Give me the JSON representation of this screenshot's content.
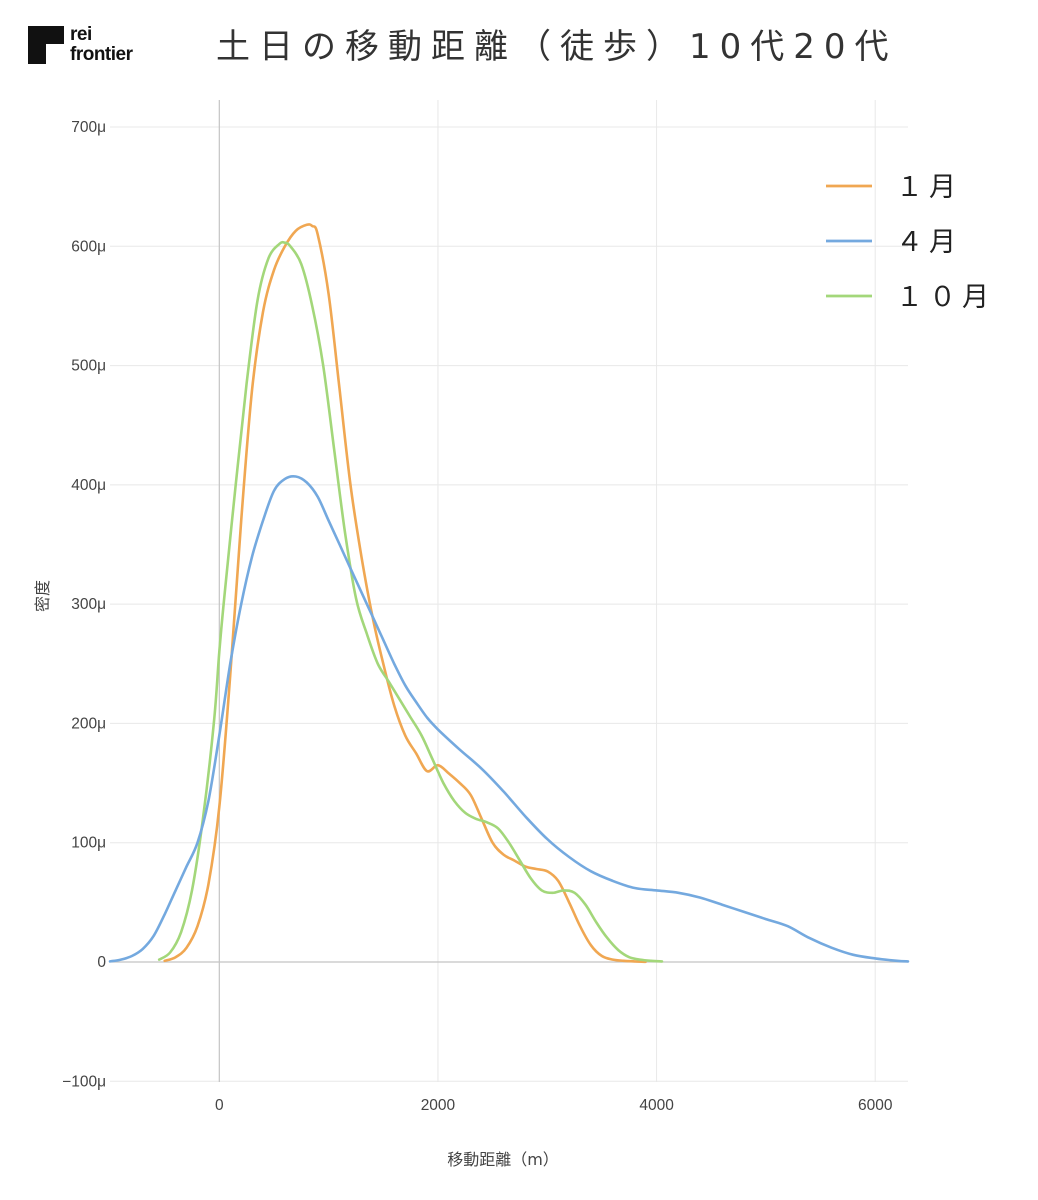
{
  "header": {
    "logo_line1": "rei",
    "logo_line2": "frontier",
    "title": "土日の移動距離（徒歩）10代20代"
  },
  "chart_data": {
    "type": "line",
    "title": "土日の移動距離（徒歩）10代20代",
    "xlabel": "移動距離（m）",
    "ylabel": "密度",
    "xlim": [
      -1000,
      6300
    ],
    "ylim": [
      -0.0001,
      0.0007
    ],
    "x_ticks": [
      0,
      2000,
      4000,
      6000
    ],
    "x_tick_labels": [
      "0",
      "2000",
      "4000",
      "6000"
    ],
    "y_ticks": [
      -0.0001,
      0,
      0.0001,
      0.0002,
      0.0003,
      0.0004,
      0.0005,
      0.0006,
      0.0007
    ],
    "y_tick_labels": [
      "−100μ",
      "0",
      "100μ",
      "200μ",
      "300μ",
      "400μ",
      "500μ",
      "600μ",
      "700μ"
    ],
    "grid": true,
    "legend_position": "top-right",
    "series": [
      {
        "name": "１月",
        "color": "#f0a752",
        "x": [
          -500,
          -400,
          -300,
          -200,
          -100,
          0,
          100,
          200,
          300,
          400,
          500,
          600,
          700,
          800,
          850,
          900,
          1000,
          1100,
          1200,
          1300,
          1400,
          1500,
          1600,
          1700,
          1800,
          1900,
          2000,
          2100,
          2200,
          2300,
          2400,
          2500,
          2600,
          2700,
          2800,
          2900,
          3000,
          3100,
          3200,
          3300,
          3400,
          3500,
          3600,
          3700,
          3800,
          3900
        ],
        "y": [
          1e-06,
          4e-06,
          1.2e-05,
          3e-05,
          6.5e-05,
          0.00013,
          0.00024,
          0.00037,
          0.00048,
          0.000545,
          0.00058,
          0.0006,
          0.000613,
          0.000618,
          0.000617,
          0.00061,
          0.00056,
          0.00048,
          0.0004,
          0.00034,
          0.00029,
          0.00025,
          0.000215,
          0.00019,
          0.000175,
          0.00016,
          0.000165,
          0.000158,
          0.00015,
          0.00014,
          0.00012,
          0.0001,
          9e-05,
          8.5e-05,
          8e-05,
          7.8e-05,
          7.6e-05,
          6.8e-05,
          5e-05,
          3e-05,
          1.4e-05,
          5e-06,
          2e-06,
          1e-06,
          5e-07,
          2e-07
        ]
      },
      {
        "name": "４月",
        "color": "#74a9df",
        "x": [
          -1000,
          -900,
          -800,
          -700,
          -600,
          -500,
          -400,
          -300,
          -200,
          -100,
          0,
          100,
          200,
          300,
          400,
          500,
          600,
          700,
          800,
          900,
          1000,
          1100,
          1200,
          1300,
          1400,
          1500,
          1600,
          1700,
          1800,
          1900,
          2000,
          2200,
          2400,
          2600,
          2800,
          3000,
          3200,
          3400,
          3600,
          3800,
          4000,
          4200,
          4400,
          4600,
          4800,
          5000,
          5200,
          5400,
          5600,
          5800,
          6000,
          6200,
          6300
        ],
        "y": [
          5e-07,
          2e-06,
          5e-06,
          1.1e-05,
          2.2e-05,
          4e-05,
          6e-05,
          8e-05,
          0.0001,
          0.000135,
          0.00019,
          0.00025,
          0.0003,
          0.00034,
          0.00037,
          0.000395,
          0.000405,
          0.000407,
          0.000402,
          0.00039,
          0.00037,
          0.00035,
          0.00033,
          0.00031,
          0.00029,
          0.00027,
          0.00025,
          0.000232,
          0.000218,
          0.000205,
          0.000195,
          0.000178,
          0.000162,
          0.000143,
          0.000122,
          0.000103,
          8.8e-05,
          7.6e-05,
          6.8e-05,
          6.2e-05,
          6e-05,
          5.8e-05,
          5.4e-05,
          4.8e-05,
          4.2e-05,
          3.6e-05,
          3e-05,
          2e-05,
          1.2e-05,
          6e-06,
          3e-06,
          1e-06,
          5e-07
        ]
      },
      {
        "name": "１０月",
        "color": "#a3d77a",
        "x": [
          -550,
          -450,
          -350,
          -250,
          -150,
          -50,
          0,
          50,
          150,
          250,
          350,
          450,
          550,
          600,
          650,
          750,
          850,
          950,
          1050,
          1150,
          1250,
          1350,
          1450,
          1550,
          1650,
          1750,
          1850,
          1950,
          2050,
          2150,
          2250,
          2350,
          2450,
          2550,
          2650,
          2750,
          2850,
          2950,
          3050,
          3150,
          3250,
          3350,
          3450,
          3550,
          3650,
          3750,
          3850,
          3950,
          4050
        ],
        "y": [
          2e-06,
          8e-06,
          2.5e-05,
          6e-05,
          0.00012,
          0.0002,
          0.00026,
          0.00031,
          0.0004,
          0.000485,
          0.000555,
          0.00059,
          0.000602,
          0.000603,
          0.0006,
          0.000585,
          0.00055,
          0.0005,
          0.00043,
          0.00036,
          0.000305,
          0.000275,
          0.00025,
          0.000235,
          0.00022,
          0.000205,
          0.00019,
          0.00017,
          0.00015,
          0.000135,
          0.000125,
          0.00012,
          0.000117,
          0.000112,
          0.0001,
          8.5e-05,
          7e-05,
          6e-05,
          5.8e-05,
          6e-05,
          5.8e-05,
          4.8e-05,
          3.3e-05,
          2e-05,
          1e-05,
          4e-06,
          2e-06,
          1e-06,
          5e-07
        ]
      }
    ]
  }
}
